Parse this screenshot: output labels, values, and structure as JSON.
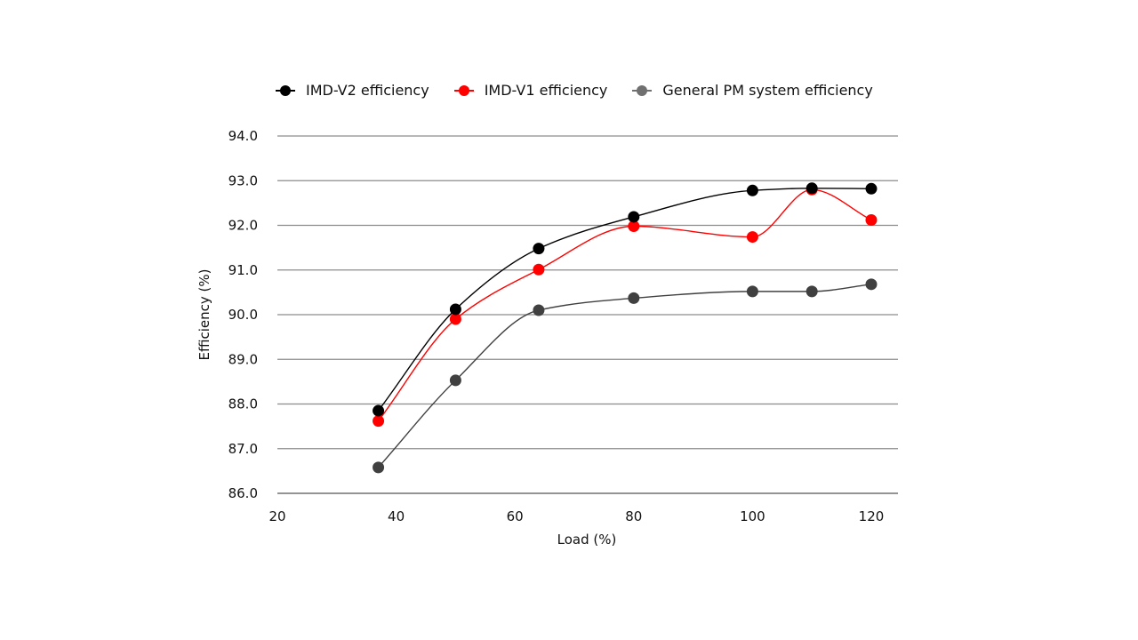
{
  "chart_data": {
    "type": "line",
    "title": "",
    "xlabel": "Load (%)",
    "ylabel": "Efficiency (%)",
    "xlim": [
      20,
      125
    ],
    "ylim": [
      86.0,
      94.0
    ],
    "x_ticks": [
      "20",
      "40",
      "60",
      "80",
      "100",
      "120"
    ],
    "x_tick_values": [
      20,
      40,
      60,
      80,
      100,
      120
    ],
    "y_ticks": [
      "94.0",
      "93.0",
      "92.0",
      "91.0",
      "90.0",
      "89.0",
      "88.0",
      "87.0",
      "86.0"
    ],
    "y_tick_values": [
      94,
      93,
      92,
      91,
      90,
      89,
      88,
      87,
      86
    ],
    "grid": "horizontal",
    "legend_position": "top",
    "series": [
      {
        "name": "IMD-V2 efficiency",
        "color": "#000000",
        "x": [
          37,
          50,
          64,
          80,
          100,
          110,
          120
        ],
        "y": [
          87.85,
          90.12,
          91.48,
          92.19,
          92.78,
          92.83,
          92.82
        ]
      },
      {
        "name": "IMD-V1 efficiency",
        "color": "#ff0000",
        "x": [
          37,
          50,
          64,
          80,
          100,
          110,
          120
        ],
        "y": [
          87.62,
          89.9,
          91.01,
          91.98,
          91.74,
          92.8,
          92.12
        ]
      },
      {
        "name": "General PM system efficiency",
        "color": "#404040",
        "legend_color": "#707070",
        "x": [
          37,
          50,
          64,
          80,
          100,
          110,
          120
        ],
        "y": [
          86.58,
          88.53,
          90.1,
          90.37,
          90.52,
          90.52,
          90.68
        ]
      }
    ]
  }
}
